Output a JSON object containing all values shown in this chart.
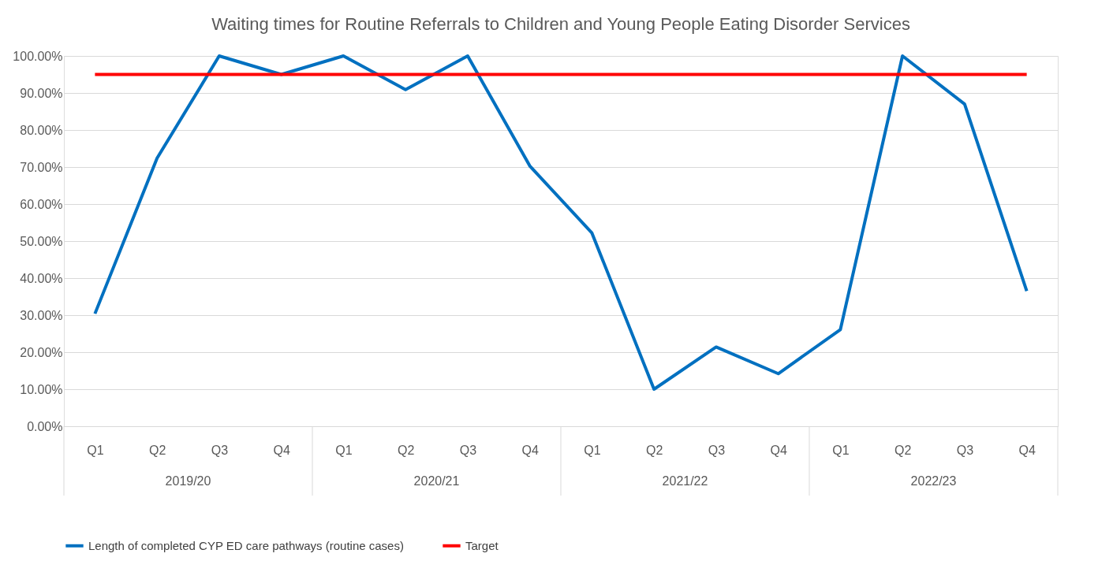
{
  "chart_data": {
    "type": "line",
    "title": "Waiting times for Routine Referrals to Children and Young People Eating Disorder Services",
    "categories": [
      "Q1",
      "Q2",
      "Q3",
      "Q4",
      "Q1",
      "Q2",
      "Q3",
      "Q4",
      "Q1",
      "Q2",
      "Q3",
      "Q4",
      "Q1",
      "Q2",
      "Q3",
      "Q4"
    ],
    "annotations": [
      "2019/20",
      "2020/21",
      "2021/22",
      "2022/23"
    ],
    "series": [
      {
        "name": "Length of completed CYP ED care pathways (routine cases)",
        "color": "#0070c0",
        "values": [
          30.4,
          72.4,
          100,
          95,
          100,
          90.9,
          100,
          70.3,
          52.2,
          10,
          21.4,
          14.2,
          26.1,
          100,
          87,
          36.5
        ]
      },
      {
        "name": "Target",
        "color": "#ff0000",
        "values": [
          95,
          95,
          95,
          95,
          95,
          95,
          95,
          95,
          95,
          95,
          95,
          95,
          95,
          95,
          95,
          95
        ]
      }
    ],
    "ylim": [
      0,
      100
    ],
    "yticks": [
      {
        "value": 0,
        "label": "0.00%"
      },
      {
        "value": 10,
        "label": "10.00%"
      },
      {
        "value": 20,
        "label": "20.00%"
      },
      {
        "value": 30,
        "label": "30.00%"
      },
      {
        "value": 40,
        "label": "40.00%"
      },
      {
        "value": 50,
        "label": "50.00%"
      },
      {
        "value": 60,
        "label": "60.00%"
      },
      {
        "value": 70,
        "label": "70.00%"
      },
      {
        "value": 80,
        "label": "80.00%"
      },
      {
        "value": 90,
        "label": "90.00%"
      },
      {
        "value": 100,
        "label": "100.00%"
      }
    ],
    "grid": "y",
    "legend": "bottom",
    "marker": "none",
    "line_style": "solid"
  }
}
